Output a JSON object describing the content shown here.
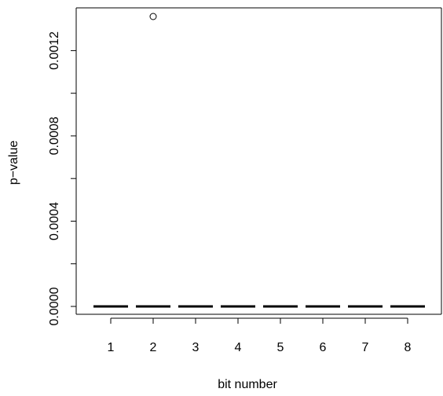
{
  "chart_data": {
    "type": "box",
    "title": "",
    "xlabel": "bit number",
    "ylabel": "p−value",
    "categories": [
      "1",
      "2",
      "3",
      "4",
      "5",
      "6",
      "7",
      "8"
    ],
    "medians": [
      0,
      0,
      0,
      0,
      0,
      0,
      0,
      0
    ],
    "outliers": [
      {
        "category": "2",
        "value": 0.00136
      }
    ],
    "ylim": [
      0,
      0.00136
    ],
    "yticks": [
      0,
      0.0004,
      0.0008,
      0.0012
    ],
    "ytick_labels": [
      "0.0000",
      "0.0004",
      "0.0008",
      "0.0012"
    ],
    "grid": false,
    "legend": "none"
  }
}
